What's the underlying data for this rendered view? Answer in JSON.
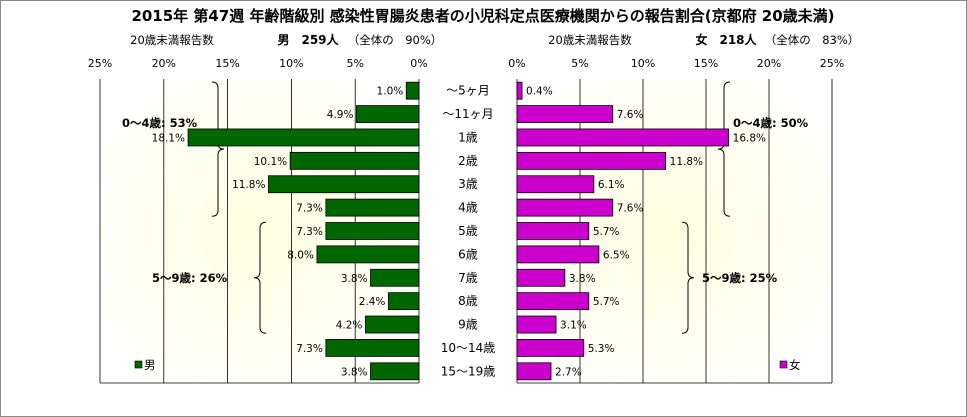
{
  "chart_data": {
    "type": "bar",
    "title": "2015年 第47週 年齢階級別 感染性胃腸炎患者の小児科定点医療機関からの報告割合(京都府 20歳未満)",
    "categories": [
      "～5ヶ月",
      "～11ヶ月",
      "1歳",
      "2歳",
      "3歳",
      "4歳",
      "5歳",
      "6歳",
      "7歳",
      "8歳",
      "9歳",
      "10～14歳",
      "15～19歳"
    ],
    "xlim": [
      0,
      25
    ],
    "x_ticks": [
      "0%",
      "5%",
      "10%",
      "15%",
      "20%",
      "25%"
    ],
    "grid": true,
    "series": [
      {
        "name": "男",
        "color": "#006600",
        "values": [
          1.0,
          4.9,
          18.1,
          10.1,
          11.8,
          7.3,
          7.3,
          8.0,
          3.8,
          2.4,
          4.2,
          7.3,
          3.8
        ],
        "labels": [
          "1.0%",
          "4.9%",
          "18.1%",
          "10.1%",
          "11.8%",
          "7.3%",
          "7.3%",
          "8.0%",
          "3.8%",
          "2.4%",
          "4.2%",
          "7.3%",
          "3.8%"
        ],
        "header_left": "20歳未満報告数",
        "header_main": "男　259人",
        "header_note": "（全体の　90%）",
        "groups": [
          {
            "label": "0～4歳: 53%",
            "from": 0,
            "to": 5
          },
          {
            "label": "5～9歳: 26%",
            "from": 6,
            "to": 10
          }
        ]
      },
      {
        "name": "女",
        "color": "#cc00cc",
        "values": [
          0.4,
          7.6,
          16.8,
          11.8,
          6.1,
          7.6,
          5.7,
          6.5,
          3.8,
          5.7,
          3.1,
          5.3,
          2.7
        ],
        "labels": [
          "0.4%",
          "7.6%",
          "16.8%",
          "11.8%",
          "6.1%",
          "7.6%",
          "5.7%",
          "6.5%",
          "3.8%",
          "5.7%",
          "3.1%",
          "5.3%",
          "2.7%"
        ],
        "header_left": "20歳未満報告数",
        "header_main": "女　218人",
        "header_note": "（全体の　83%）",
        "groups": [
          {
            "label": "0～4歳: 50%",
            "from": 0,
            "to": 5
          },
          {
            "label": "5～9歳: 25%",
            "from": 6,
            "to": 10
          }
        ]
      }
    ]
  }
}
